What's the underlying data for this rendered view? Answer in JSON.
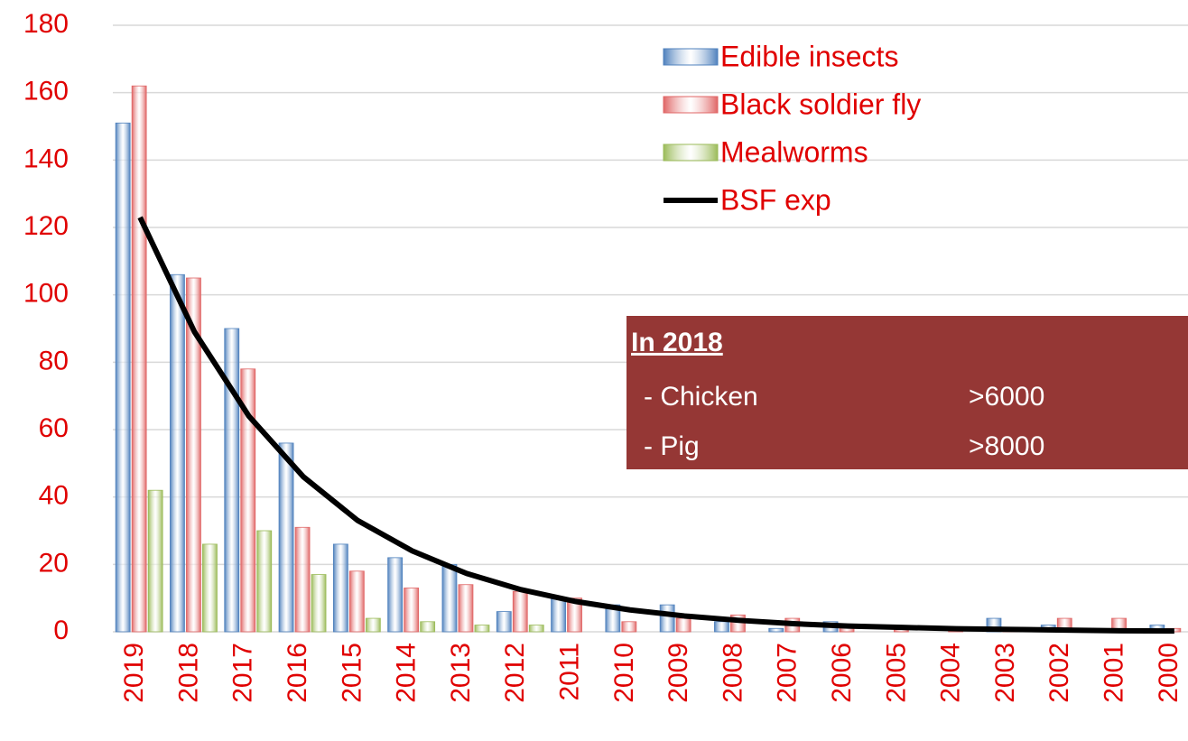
{
  "chart_data": {
    "type": "bar",
    "categories": [
      "2019",
      "2018",
      "2017",
      "2016",
      "2015",
      "2014",
      "2013",
      "2012",
      "2011",
      "2010",
      "2009",
      "2008",
      "2007",
      "2006",
      "2005",
      "2004",
      "2003",
      "2002",
      "2001",
      "2000"
    ],
    "series": [
      {
        "name": "Edible insects",
        "color": "#4f81bd",
        "values": [
          151,
          106,
          90,
          56,
          26,
          22,
          20,
          6,
          10,
          8,
          8,
          3,
          1,
          3,
          0,
          0,
          4,
          2,
          0,
          2
        ]
      },
      {
        "name": "Black soldier fly",
        "color": "#e06666",
        "values": [
          162,
          105,
          78,
          31,
          18,
          13,
          14,
          12,
          10,
          3,
          4,
          5,
          4,
          2,
          1,
          1,
          1,
          4,
          4,
          1
        ]
      },
      {
        "name": "Mealworms",
        "color": "#9bbb59",
        "values": [
          42,
          26,
          30,
          17,
          4,
          3,
          2,
          2,
          0,
          0,
          0,
          0,
          0,
          0,
          0,
          0,
          0,
          0,
          0,
          0
        ]
      },
      {
        "name": "BSF exp",
        "color": "#000000",
        "kind": "line",
        "values": [
          123,
          89,
          64,
          46,
          33,
          24,
          17.3,
          12.5,
          9,
          6.5,
          4.7,
          3.4,
          2.4,
          1.7,
          1.3,
          0.9,
          0.7,
          0.5,
          0.3,
          0.25
        ]
      }
    ],
    "ylim": [
      0,
      180
    ],
    "yticks": [
      0,
      20,
      40,
      60,
      80,
      100,
      120,
      140,
      160,
      180
    ],
    "grid": true,
    "legend": "top",
    "annotation": {
      "title": "In 2018",
      "rows": [
        {
          "label": "- Chicken",
          "value": ">6000"
        },
        {
          "label": "- Pig",
          "value": ">8000"
        }
      ],
      "color": "#953735"
    }
  }
}
